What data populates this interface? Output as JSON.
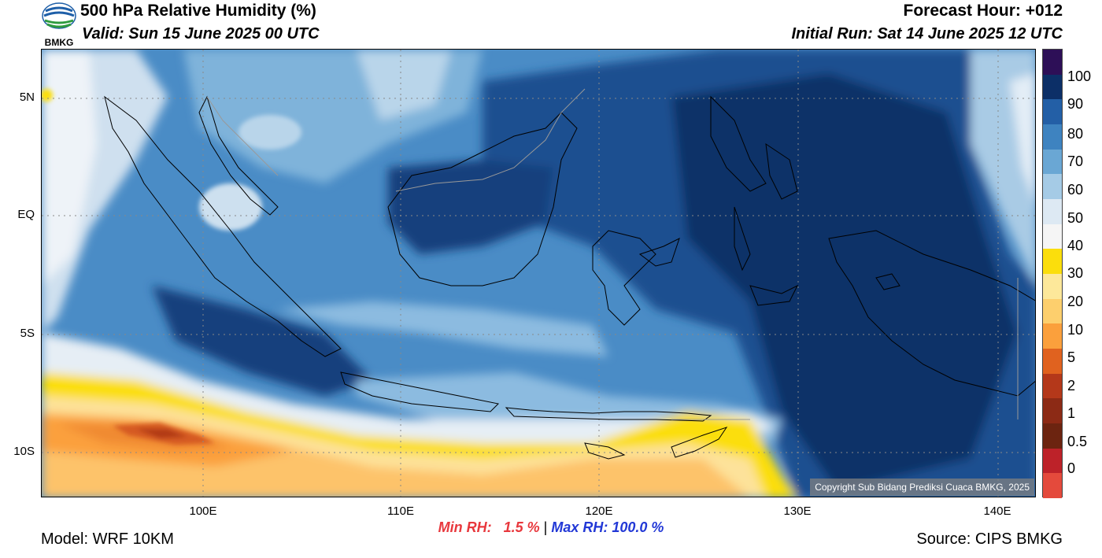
{
  "header": {
    "logo_text": "BMKG",
    "title": "500 hPa Relative Humidity (%)",
    "valid": "Valid: Sun 15 June 2025 00 UTC",
    "forecast_hour": "Forecast Hour: +012",
    "initial_run": "Initial Run: Sat 14 June 2025 12 UTC"
  },
  "map": {
    "lat_labels": [
      "5N",
      "EQ",
      "5S",
      "10S"
    ],
    "lon_labels": [
      "100E",
      "110E",
      "120E",
      "130E",
      "140E"
    ],
    "copyright": "Copyright Sub Bidang Prediksi Cuaca BMKG, 2025",
    "lon_range": [
      92,
      142
    ],
    "lat_range": [
      -12,
      7
    ]
  },
  "colorbar": {
    "labels": [
      "100",
      "90",
      "80",
      "70",
      "60",
      "50",
      "40",
      "30",
      "20",
      "10",
      "5",
      "2",
      "1",
      "0.5",
      "0"
    ],
    "colors": [
      "#2d0f57",
      "#0c2f67",
      "#235fa6",
      "#3e83c0",
      "#6aa7d4",
      "#a5cbe6",
      "#dde9f3",
      "#f5f5f5",
      "#fbde0c",
      "#fde89a",
      "#fdcf6d",
      "#fba03c",
      "#e0621f",
      "#b4381a",
      "#8c2a15",
      "#6c2410",
      "#bd2229",
      "#e44a3c"
    ]
  },
  "stats": {
    "min_label": "Min RH:",
    "min_value": "1.5 %",
    "separator": "|",
    "max_label": "Max RH:",
    "max_value": "100.0 %"
  },
  "footer": {
    "model": "Model: WRF 10KM",
    "source": "Source: CIPS BMKG"
  }
}
